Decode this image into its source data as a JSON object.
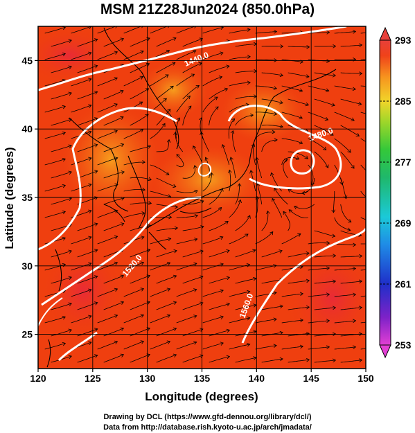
{
  "title": "MSM 21Z28Jun2024 (850.0hPa)",
  "xlabel": "Longitude (degrees)",
  "ylabel": "Latitude  (degrees)",
  "credit_line1": "Drawing by DCL (https://www.gfd-dennou.org/library/dcl/)",
  "credit_line2": "Data from http://database.rish.kyoto-u.ac.jp/arch/jmadata/",
  "x_ticks": [
    "120",
    "125",
    "130",
    "135",
    "140",
    "145",
    "150"
  ],
  "y_ticks": [
    "25",
    "30",
    "35",
    "40",
    "45"
  ],
  "colorbar_ticks": [
    "293",
    "285",
    "277",
    "269",
    "261",
    "253"
  ],
  "contour_labels": [
    "1440.0",
    "1480.0",
    "1520.0",
    "1560.0"
  ],
  "colors": {
    "fill_main": "#ef3f0f",
    "fill_warm": "#f25a12",
    "fill_hot": "#ea2f2f",
    "fill_orange": "#f7931e",
    "contour": "#ffffff",
    "streamline": "#000000"
  },
  "map": {
    "lon_range": [
      120,
      150
    ],
    "lat_range": [
      22.5,
      47.5
    ],
    "colorbar_range": [
      253,
      293
    ],
    "fields": [
      "temperature (shaded)",
      "geopotential height (white contours)",
      "wind streamlines (black)"
    ]
  }
}
